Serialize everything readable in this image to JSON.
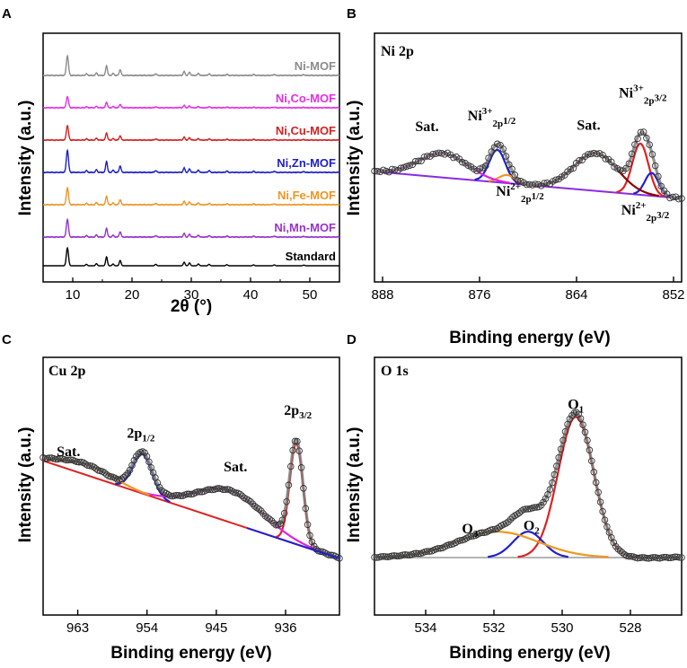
{
  "panel_labels": [
    "A",
    "B",
    "C",
    "D"
  ],
  "colors": {
    "Ni-MOF": "#8c8c8c",
    "Ni,Co-MOF": "#e62ee6",
    "Ni,Cu-MOF": "#d42222",
    "Ni,Zn-MOF": "#1f1fc8",
    "Ni,Fe-MOF": "#ef9522",
    "Ni,Mn-MOF": "#9932cc",
    "Standard": "#000000",
    "red": "#e02020",
    "blue": "#2020d0",
    "orange": "#f0961e",
    "magenta": "#dd22dd",
    "purple": "#8a2be2",
    "darkred": "#8b0000",
    "gray": "#7f7f7f",
    "lightgray": "#b4b4b4"
  },
  "chart_data": [
    {
      "type": "line",
      "panel": "A",
      "title": "",
      "xlabel": "2θ (°)",
      "ylabel": "Intensity (a.u.)",
      "xlim": [
        5,
        55
      ],
      "xticks": [
        10,
        20,
        30,
        40,
        50
      ],
      "tick_labels": [
        "10",
        "20",
        "30",
        "40",
        "50"
      ],
      "peaks_2theta": [
        9.1,
        12.3,
        14.0,
        15.7,
        16.8,
        18.0,
        24.0,
        28.8,
        29.7,
        31.2,
        33.0,
        36.0,
        40.5,
        44.0,
        49.0
      ],
      "peak_heights": [
        1.0,
        0.08,
        0.12,
        0.5,
        0.1,
        0.3,
        0.08,
        0.2,
        0.16,
        0.1,
        0.08,
        0.06,
        0.05,
        0.05,
        0.04
      ],
      "series": [
        {
          "name": "Ni-MOF",
          "color": "#8c8c8c",
          "peak_scale": 1.0
        },
        {
          "name": "Ni,Co-MOF",
          "color": "#e62ee6",
          "peak_scale": 0.7
        },
        {
          "name": "Ni,Cu-MOF",
          "color": "#d42222",
          "peak_scale": 0.9
        },
        {
          "name": "Ni,Zn-MOF",
          "color": "#1f1fc8",
          "peak_scale": 0.95
        },
        {
          "name": "Ni,Fe-MOF",
          "color": "#ef9522",
          "peak_scale": 0.95
        },
        {
          "name": "Ni,Mn-MOF",
          "color": "#9932cc",
          "peak_scale": 0.9
        },
        {
          "name": "Standard",
          "color": "#000000",
          "peak_scale": 0.8
        }
      ]
    },
    {
      "type": "line",
      "panel": "B",
      "title": "Ni 2p",
      "xlabel": "Binding energy (eV)",
      "ylabel": "Intensity (a.u.)",
      "xlim": [
        889,
        851
      ],
      "ylim": [
        0,
        1
      ],
      "xticks": [
        888,
        876,
        864,
        852
      ],
      "tick_labels": [
        "888",
        "876",
        "864",
        "852"
      ],
      "background": [
        [
          889,
          0.3
        ],
        [
          851,
          0.1
        ]
      ],
      "components": [
        {
          "name": "Ni3+ 2p3/2",
          "color": "#e02020",
          "center": 856.1,
          "width": 1.0,
          "height": 0.38
        },
        {
          "name": "Ni2+ 2p3/2",
          "color": "#2020d0",
          "center": 854.7,
          "width": 0.85,
          "height": 0.17
        },
        {
          "name": "Sat. (2p3/2)",
          "color": "#8b0000",
          "center": 861.6,
          "width": 2.7,
          "height": 0.28
        },
        {
          "name": "Ni3+ 2p1/2",
          "color": "#2020d0",
          "center": 873.8,
          "width": 1.0,
          "height": 0.24
        },
        {
          "name": "Ni2+ 2p1/2",
          "color": "#f0961e",
          "center": 872.6,
          "width": 1.0,
          "height": 0.06
        },
        {
          "name": "Sat. (2p1/2)",
          "color": "#dd22dd",
          "center": 880.5,
          "width": 3.0,
          "height": 0.18
        }
      ],
      "annotations": [
        {
          "text": "Sat.",
          "x": 882.5,
          "y": 0.6
        },
        {
          "text": "Ni3+2p1/2",
          "x": 874.5,
          "y": 0.68
        },
        {
          "text": "Sat.",
          "x": 862.5,
          "y": 0.61
        },
        {
          "text": "Ni3+2p3/2",
          "x": 855.8,
          "y": 0.85
        },
        {
          "text": "Ni2+2p1/2",
          "x": 871.0,
          "y": 0.12
        },
        {
          "text": "Ni2+2p3/2",
          "x": 855.5,
          "y": -0.02
        }
      ]
    },
    {
      "type": "line",
      "panel": "C",
      "title": "Cu 2p",
      "xlabel": "Binding energy (eV)",
      "ylabel": "Intensity (a.u.)",
      "xlim": [
        967.5,
        929
      ],
      "ylim": [
        0,
        1
      ],
      "xticks": [
        963,
        954,
        945,
        936
      ],
      "tick_labels": [
        "963",
        "954",
        "945",
        "936"
      ],
      "background": [
        [
          967.5,
          0.64
        ],
        [
          929,
          0.0
        ]
      ],
      "components": [
        {
          "name": "2p3/2",
          "color": "#e02020",
          "center": 934.6,
          "width": 0.85,
          "height": 0.66
        },
        {
          "name": "2p1/2",
          "color": "#2020d0",
          "center": 954.6,
          "width": 1.25,
          "height": 0.26
        },
        {
          "name": "Sat. (2p3/2)",
          "color": "#dd22dd",
          "center": 943.2,
          "width": 4.3,
          "height": 0.21
        },
        {
          "name": "Sat. (2p1/2)",
          "color": "#f0961e",
          "center": 962.0,
          "width": 3.5,
          "height": 0.07
        }
      ],
      "annotations": [
        {
          "text": "Sat.",
          "x": 964.2,
          "y": 0.67
        },
        {
          "text": "2p1/2",
          "x": 954.8,
          "y": 0.79
        },
        {
          "text": "Sat.",
          "x": 942.5,
          "y": 0.57
        },
        {
          "text": "2p3/2",
          "x": 934.4,
          "y": 0.94
        }
      ]
    },
    {
      "type": "line",
      "panel": "D",
      "title": "O 1s",
      "xlabel": "Binding energy (eV)",
      "ylabel": "Intensity (a.u.)",
      "xlim": [
        535.5,
        526.5
      ],
      "ylim": [
        0,
        1
      ],
      "xticks": [
        534,
        532,
        530,
        528
      ],
      "tick_labels": [
        "534",
        "532",
        "530",
        "528"
      ],
      "background": [
        [
          535.5,
          0.0
        ],
        [
          526.5,
          0.0
        ]
      ],
      "components": [
        {
          "name": "O1",
          "color": "#e02020",
          "center": 529.6,
          "width": 0.52,
          "height": 0.87
        },
        {
          "name": "O2",
          "color": "#2020d0",
          "center": 531.0,
          "width": 0.44,
          "height": 0.16
        },
        {
          "name": "O3",
          "color": "#f0961e",
          "center": 531.9,
          "width": 1.2,
          "height": 0.16
        }
      ],
      "annotations": [
        {
          "text": "O1",
          "x": 529.6,
          "y": 0.92
        },
        {
          "text": "O2",
          "x": 530.9,
          "y": 0.17
        },
        {
          "text": "O3",
          "x": 532.7,
          "y": 0.15
        }
      ]
    }
  ]
}
